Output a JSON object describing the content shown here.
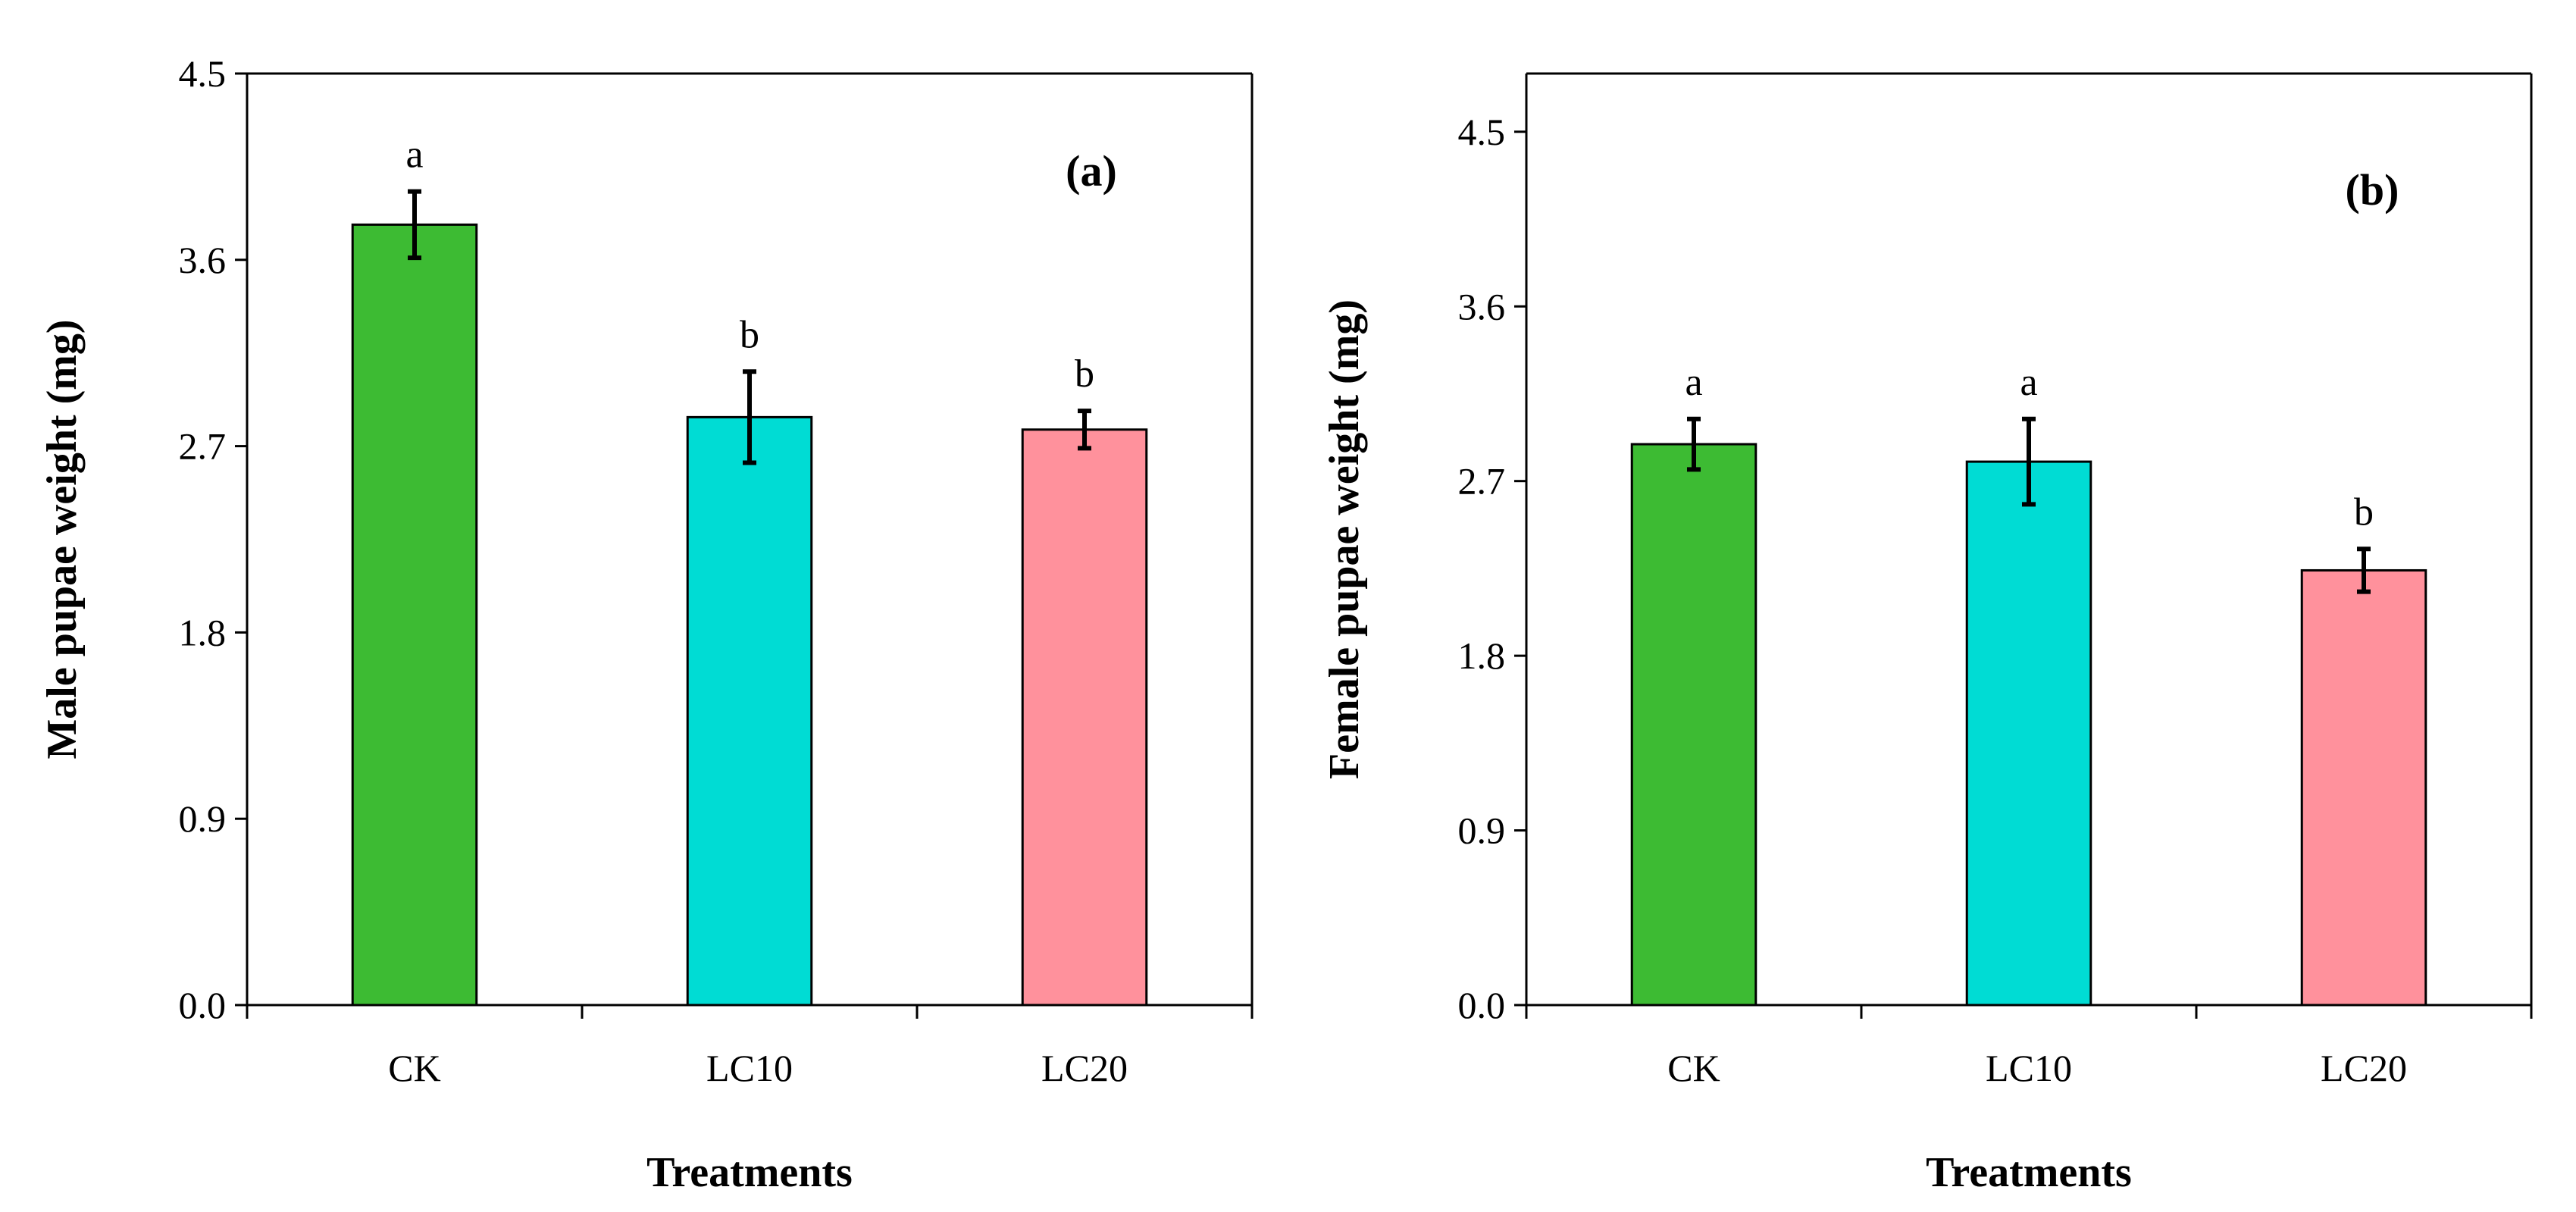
{
  "chart_data": [
    {
      "type": "bar",
      "panel_label": "(a)",
      "title": "",
      "categories": [
        "CK",
        "LC10",
        "LC20"
      ],
      "values": [
        3.77,
        2.84,
        2.78
      ],
      "errors": [
        0.16,
        0.22,
        0.09
      ],
      "significance": [
        "a",
        "b",
        "b"
      ],
      "colors": [
        "#3dbb33",
        "#00dcd4",
        "#ff919c"
      ],
      "xlabel": "Treatments",
      "ylabel": "Male pupae weight (mg)",
      "ylim": [
        0,
        4.5
      ],
      "yticks": [
        "0.0",
        "0.9",
        "1.8",
        "2.7",
        "3.6",
        "4.5"
      ],
      "ytick_values": [
        0,
        0.9,
        1.8,
        2.7,
        3.6,
        4.5
      ],
      "grid": false
    },
    {
      "type": "bar",
      "panel_label": "(b)",
      "title": "",
      "categories": [
        "CK",
        "LC10",
        "LC20"
      ],
      "values": [
        2.89,
        2.8,
        2.24
      ],
      "errors": [
        0.13,
        0.22,
        0.11
      ],
      "significance": [
        "a",
        "a",
        "b"
      ],
      "colors": [
        "#3dbb33",
        "#00dcd4",
        "#ff919c"
      ],
      "xlabel": "Treatments",
      "ylabel": "Female pupae weight (mg)",
      "ylim": [
        0,
        4.8
      ],
      "yticks": [
        "0.0",
        "0.9",
        "1.8",
        "2.7",
        "3.6",
        "4.5"
      ],
      "ytick_values": [
        0,
        0.9,
        1.8,
        2.7,
        3.6,
        4.5
      ],
      "grid": false
    }
  ]
}
